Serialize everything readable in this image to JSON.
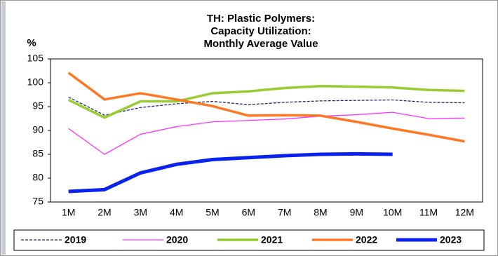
{
  "chart_data": {
    "type": "line",
    "title": [
      "TH: Plastic Polymers:",
      "Capacity Utilization:",
      "Monthly Average Value"
    ],
    "y_label": "%",
    "categories": [
      "1M",
      "2M",
      "3M",
      "4M",
      "5M",
      "6M",
      "7M",
      "8M",
      "9M",
      "10M",
      "11M",
      "12M"
    ],
    "series": [
      {
        "name": "2019",
        "color": "#1f2a6e",
        "line_width": 1.3,
        "dashed": true,
        "values": [
          97,
          93.2,
          94.8,
          95.6,
          96.1,
          95.4,
          95.9,
          96.2,
          96.3,
          96.4,
          95.9,
          95.8
        ]
      },
      {
        "name": "2020",
        "color": "#ff33ff",
        "line_width": 1.3,
        "dashed": false,
        "values": [
          90.4,
          85,
          89.2,
          90.8,
          91.8,
          92.1,
          92.4,
          93,
          93.3,
          93.8,
          92.5,
          92.6
        ]
      },
      {
        "name": "2021",
        "color": "#99cc33",
        "line_width": 3.5,
        "dashed": false,
        "values": [
          96.4,
          92.7,
          96.1,
          96.1,
          97.8,
          98.2,
          98.9,
          99.3,
          99.2,
          99,
          98.5,
          98.3
        ]
      },
      {
        "name": "2022",
        "color": "#ff7722",
        "line_width": 3.5,
        "dashed": false,
        "values": [
          102.1,
          96.5,
          97.8,
          96.5,
          95.1,
          93.1,
          93.2,
          93.1,
          91.8,
          90.4,
          89.1,
          87.7
        ]
      },
      {
        "name": "2023",
        "color": "#0a22ee",
        "line_width": 5,
        "dashed": false,
        "values": [
          77.2,
          77.6,
          81.1,
          82.9,
          83.9,
          84.3,
          84.7,
          85,
          85.1,
          85,
          null,
          null
        ]
      }
    ],
    "ylim": [
      75,
      105
    ],
    "yticks": [
      75,
      80,
      85,
      90,
      95,
      100,
      105
    ],
    "grid": false
  }
}
